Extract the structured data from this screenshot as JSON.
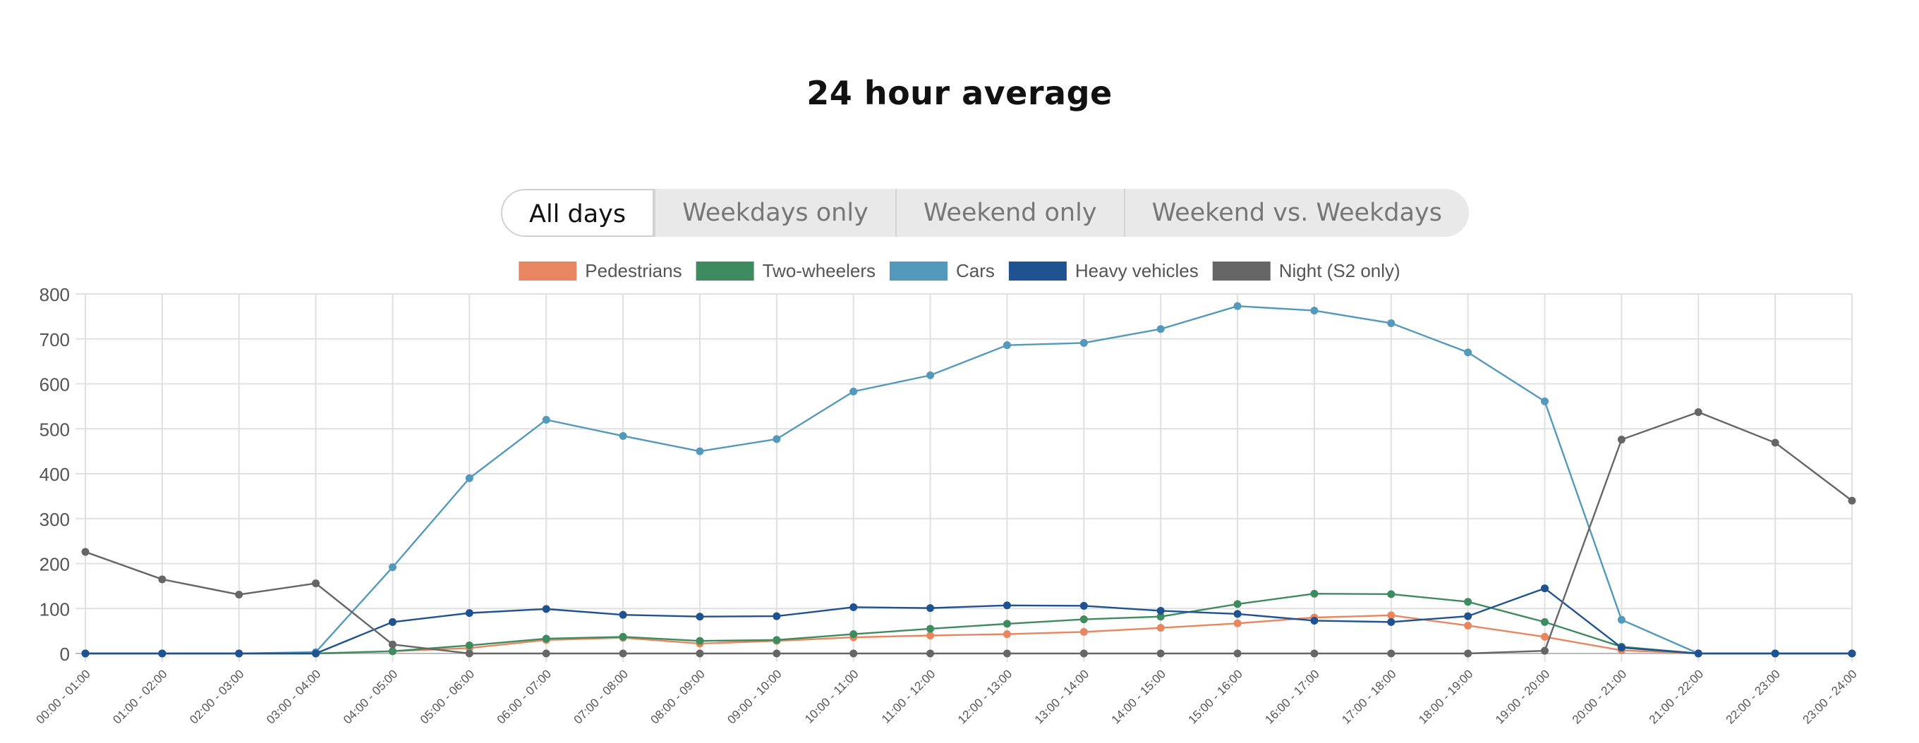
{
  "title": "24 hour average",
  "tabs": [
    {
      "label": "All days",
      "active": true
    },
    {
      "label": "Weekdays only",
      "active": false
    },
    {
      "label": "Weekend only",
      "active": false
    },
    {
      "label": "Weekend vs. Weekdays",
      "active": false
    }
  ],
  "chart_data": {
    "type": "line",
    "title": "",
    "xlabel": "",
    "ylabel": "",
    "ylim": [
      0,
      800
    ],
    "yticks": [
      0,
      100,
      200,
      300,
      400,
      500,
      600,
      700,
      800
    ],
    "grid": true,
    "legend_position": "top-center",
    "categories": [
      "00:00 - 01:00",
      "01:00 - 02:00",
      "02:00 - 03:00",
      "03:00 - 04:00",
      "04:00 - 05:00",
      "05:00 - 06:00",
      "06:00 - 07:00",
      "07:00 - 08:00",
      "08:00 - 09:00",
      "09:00 - 10:00",
      "10:00 - 11:00",
      "11:00 - 12:00",
      "12:00 - 13:00",
      "13:00 - 14:00",
      "14:00 - 15:00",
      "15:00 - 16:00",
      "16:00 - 17:00",
      "17:00 - 18:00",
      "18:00 - 19:00",
      "19:00 - 20:00",
      "20:00 - 21:00",
      "21:00 - 22:00",
      "22:00 - 23:00",
      "23:00 - 24:00"
    ],
    "series": [
      {
        "name": "Pedestrians",
        "color": "#e8875f",
        "values": [
          0,
          0,
          0,
          0,
          5,
          12,
          30,
          35,
          22,
          28,
          36,
          40,
          43,
          48,
          57,
          67,
          80,
          85,
          62,
          37,
          7,
          0,
          0,
          0
        ]
      },
      {
        "name": "Two-wheelers",
        "color": "#3d8b5f",
        "values": [
          0,
          0,
          0,
          0,
          5,
          18,
          33,
          37,
          28,
          30,
          43,
          55,
          66,
          76,
          82,
          110,
          133,
          132,
          115,
          70,
          15,
          0,
          0,
          0
        ]
      },
      {
        "name": "Cars",
        "color": "#5399bb",
        "values": [
          0,
          0,
          0,
          3,
          192,
          390,
          520,
          484,
          450,
          477,
          583,
          619,
          686,
          691,
          722,
          773,
          763,
          735,
          670,
          561,
          75,
          0,
          0,
          0
        ]
      },
      {
        "name": "Heavy vehicles",
        "color": "#1f5290",
        "values": [
          0,
          0,
          0,
          0,
          70,
          90,
          99,
          86,
          82,
          83,
          103,
          101,
          107,
          106,
          95,
          88,
          73,
          70,
          83,
          145,
          13,
          0,
          0,
          0
        ]
      },
      {
        "name": "Night (S2 only)",
        "color": "#666666",
        "values": [
          226,
          165,
          131,
          156,
          20,
          0,
          0,
          0,
          0,
          0,
          0,
          0,
          0,
          0,
          0,
          0,
          0,
          0,
          0,
          6,
          476,
          537,
          469,
          340
        ]
      }
    ]
  }
}
